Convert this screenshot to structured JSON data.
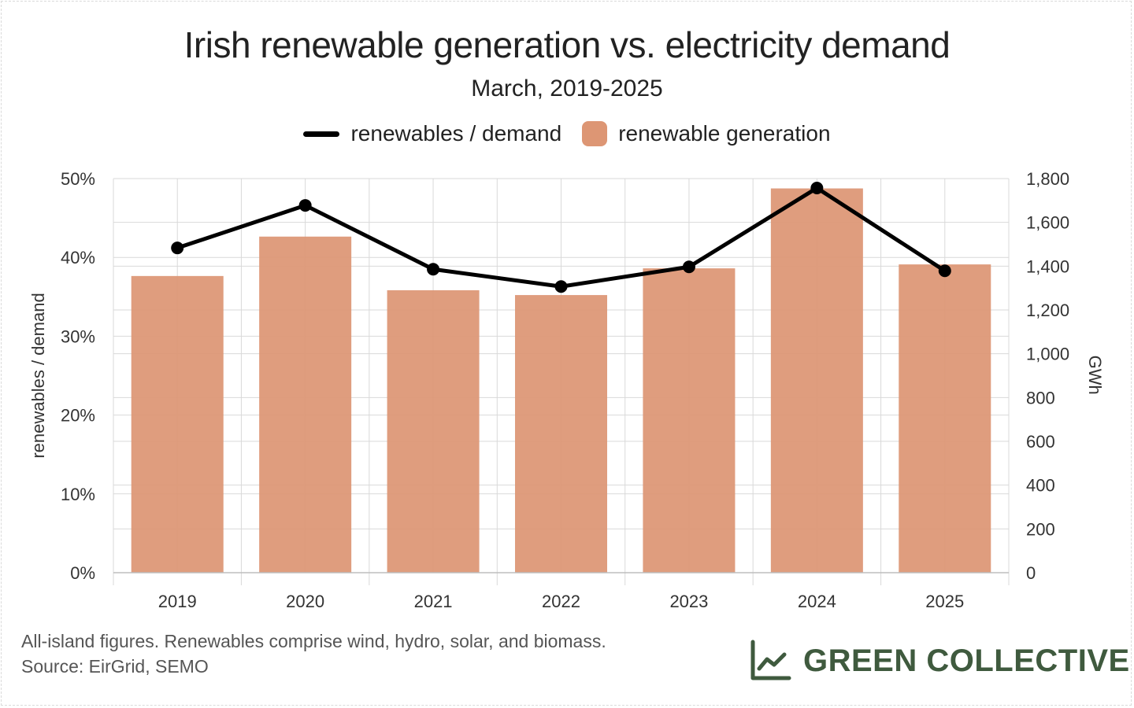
{
  "header": {
    "title": "Irish renewable generation vs. electricity demand",
    "subtitle": "March, 2019-2025"
  },
  "legend": {
    "line_label": "renewables / demand",
    "bar_label": "renewable generation"
  },
  "footer": {
    "note": "All-island figures. Renewables comprise wind, hydro, solar, and biomass.",
    "source": "Source: EirGrid, SEMO"
  },
  "brand": {
    "name": "GREEN COLLECTIVE",
    "icon": "line-chart-icon"
  },
  "colors": {
    "bar": "#dd9674",
    "line": "#000000",
    "brand": "#3f5a3e",
    "grid": "#d9d9d9"
  },
  "chart_data": {
    "type": "bar",
    "categories": [
      "2019",
      "2020",
      "2021",
      "2022",
      "2023",
      "2024",
      "2025"
    ],
    "series": [
      {
        "name": "renewable generation",
        "type": "bar",
        "axis": "right",
        "values": [
          1355,
          1535,
          1290,
          1268,
          1390,
          1755,
          1408
        ]
      },
      {
        "name": "renewables / demand",
        "type": "line",
        "axis": "left",
        "values": [
          41.2,
          46.6,
          38.5,
          36.3,
          38.8,
          48.8,
          38.3
        ]
      }
    ],
    "y_left": {
      "label": "renewables / demand",
      "ylim": [
        0,
        50
      ],
      "ticks": [
        0,
        10,
        20,
        30,
        40,
        50
      ],
      "tick_labels": [
        "0%",
        "10%",
        "20%",
        "30%",
        "40%",
        "50%"
      ]
    },
    "y_right": {
      "label": "GWh",
      "ylim": [
        0,
        1800
      ],
      "ticks": [
        0,
        200,
        400,
        600,
        800,
        1000,
        1200,
        1400,
        1600,
        1800
      ],
      "tick_labels": [
        "0",
        "200",
        "400",
        "600",
        "800",
        "1,000",
        "1,200",
        "1,400",
        "1,600",
        "1,800"
      ]
    },
    "grid": true,
    "legend_position": "top"
  }
}
